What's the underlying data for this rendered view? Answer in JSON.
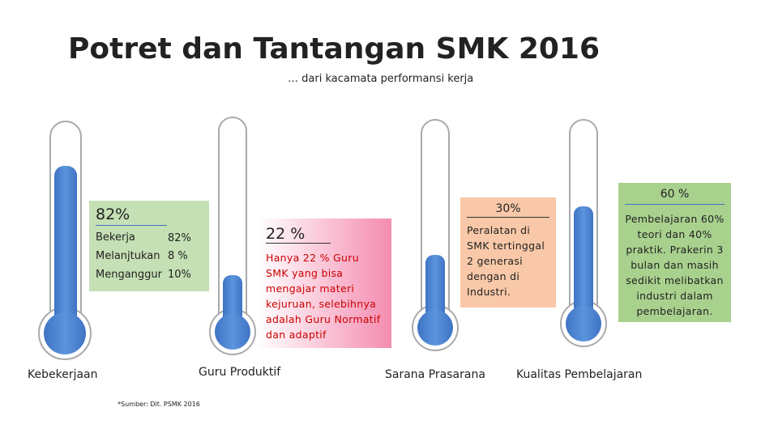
{
  "header": {
    "title": "Potret dan Tantangan SMK 2016",
    "subtitle": "… dari kacamata performansi kerja"
  },
  "panels": [
    {
      "label": "Kebekerjaan",
      "heading": "82%",
      "rows": [
        [
          "Bekerja",
          "82%"
        ],
        [
          "Melanjtukan",
          "8 %"
        ],
        [
          "Menganggur",
          "10%"
        ]
      ]
    },
    {
      "label": "Guru Produktif",
      "heading": "22 %",
      "text": "Hanya 22 % Guru SMK yang bisa mengajar materi kejuruan, selebihnya adalah Guru Normatif dan adaptif"
    },
    {
      "label": "Sarana Prasarana",
      "heading": "30%",
      "text": "Peralatan di SMK tertinggal 2 generasi dengan di Industri."
    },
    {
      "label": "Kualitas Pembelajaran",
      "heading": "60 %",
      "text": "Pembelajaran 60% teori dan 40% praktik. Prakerin 3 bulan dan masih sedikit melibatkan industri dalam pembelajaran."
    }
  ],
  "footnote": "*Sumber: Dit. PSMK 2016"
}
